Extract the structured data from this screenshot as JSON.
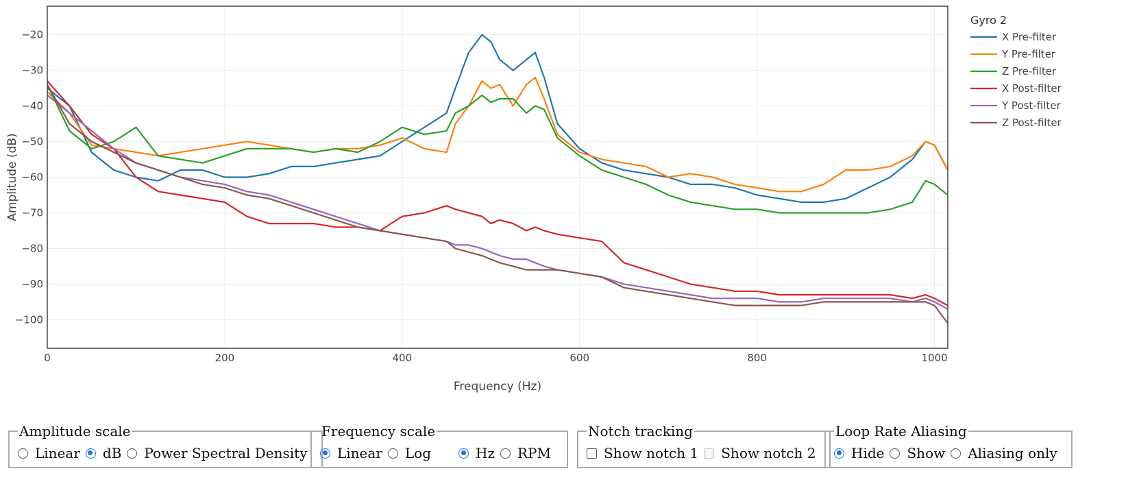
{
  "chart_data": {
    "type": "line",
    "title": "",
    "xlabel": "Frequency (Hz)",
    "ylabel": "Amplitude (dB)",
    "xlim": [
      0,
      1015
    ],
    "ylim": [
      -108,
      -12
    ],
    "x_ticks": [
      0,
      200,
      400,
      600,
      800,
      1000
    ],
    "x_tick_labels": [
      "0",
      "200",
      "400",
      "600",
      "800",
      "1000"
    ],
    "y_ticks": [
      -20,
      -30,
      -40,
      -50,
      -60,
      -70,
      -80,
      -90,
      -100
    ],
    "y_tick_labels": [
      "−20",
      "−30",
      "−40",
      "−50",
      "−60",
      "−70",
      "−80",
      "−90",
      "−100"
    ],
    "grid": true,
    "legend_title": "Gyro 2",
    "legend_position": "right",
    "x": [
      0,
      25,
      50,
      75,
      100,
      125,
      150,
      175,
      200,
      225,
      250,
      275,
      300,
      325,
      350,
      375,
      400,
      425,
      450,
      460,
      475,
      490,
      500,
      510,
      525,
      540,
      550,
      560,
      575,
      600,
      625,
      650,
      675,
      700,
      725,
      750,
      775,
      800,
      825,
      850,
      875,
      900,
      925,
      950,
      975,
      990,
      1000,
      1015
    ],
    "series": [
      {
        "name": "X Pre-filter",
        "color": "#1f77b4",
        "values": [
          -35,
          -40,
          -53,
          -58,
          -60,
          -61,
          -58,
          -58,
          -60,
          -60,
          -59,
          -57,
          -57,
          -56,
          -55,
          -54,
          -50,
          -46,
          -42,
          -35,
          -25,
          -20,
          -22,
          -27,
          -30,
          -27,
          -25,
          -32,
          -45,
          -52,
          -56,
          -58,
          -59,
          -60,
          -62,
          -62,
          -63,
          -65,
          -66,
          -67,
          -67,
          -66,
          -63,
          -60,
          -55,
          -50,
          -51,
          -58
        ]
      },
      {
        "name": "Y Pre-filter",
        "color": "#ff7f0e",
        "values": [
          -36,
          -42,
          -51,
          -52,
          -53,
          -54,
          -53,
          -52,
          -51,
          -50,
          -51,
          -52,
          -53,
          -52,
          -52,
          -51,
          -49,
          -52,
          -53,
          -45,
          -40,
          -33,
          -35,
          -34,
          -40,
          -34,
          -32,
          -38,
          -48,
          -53,
          -55,
          -56,
          -57,
          -60,
          -59,
          -60,
          -62,
          -63,
          -64,
          -64,
          -62,
          -58,
          -58,
          -57,
          -54,
          -50,
          -51,
          -58
        ]
      },
      {
        "name": "Z Pre-filter",
        "color": "#2ca02c",
        "values": [
          -34,
          -47,
          -52,
          -50,
          -46,
          -54,
          -55,
          -56,
          -54,
          -52,
          -52,
          -52,
          -53,
          -52,
          -53,
          -50,
          -46,
          -48,
          -47,
          -42,
          -40,
          -37,
          -39,
          -38,
          -38,
          -42,
          -40,
          -41,
          -49,
          -54,
          -58,
          -60,
          -62,
          -65,
          -67,
          -68,
          -69,
          -69,
          -70,
          -70,
          -70,
          -70,
          -70,
          -69,
          -67,
          -61,
          -62,
          -65
        ]
      },
      {
        "name": "X Post-filter",
        "color": "#d62728",
        "values": [
          -33,
          -40,
          -48,
          -52,
          -60,
          -64,
          -65,
          -66,
          -67,
          -71,
          -73,
          -73,
          -73,
          -74,
          -74,
          -75,
          -71,
          -70,
          -68,
          -69,
          -70,
          -71,
          -73,
          -72,
          -73,
          -75,
          -74,
          -75,
          -76,
          -77,
          -78,
          -84,
          -86,
          -88,
          -90,
          -91,
          -92,
          -92,
          -93,
          -93,
          -93,
          -93,
          -93,
          -93,
          -94,
          -93,
          -94,
          -96
        ]
      },
      {
        "name": "Y Post-filter",
        "color": "#9467bd",
        "values": [
          -37,
          -42,
          -47,
          -52,
          -56,
          -58,
          -60,
          -61,
          -62,
          -64,
          -65,
          -67,
          -69,
          -71,
          -73,
          -75,
          -76,
          -77,
          -78,
          -79,
          -79,
          -80,
          -81,
          -82,
          -83,
          -83,
          -84,
          -85,
          -86,
          -87,
          -88,
          -90,
          -91,
          -92,
          -93,
          -94,
          -94,
          -94,
          -95,
          -95,
          -94,
          -94,
          -94,
          -94,
          -95,
          -94,
          -95,
          -97
        ]
      },
      {
        "name": "Z Post-filter",
        "color": "#8c564b",
        "values": [
          -34,
          -45,
          -50,
          -53,
          -56,
          -58,
          -60,
          -62,
          -63,
          -65,
          -66,
          -68,
          -70,
          -72,
          -74,
          -75,
          -76,
          -77,
          -78,
          -80,
          -81,
          -82,
          -83,
          -84,
          -85,
          -86,
          -86,
          -86,
          -86,
          -87,
          -88,
          -91,
          -92,
          -93,
          -94,
          -95,
          -96,
          -96,
          -96,
          -96,
          -95,
          -95,
          -95,
          -95,
          -95,
          -95,
          -96,
          -101
        ]
      }
    ]
  },
  "controls": {
    "amplitude_scale": {
      "legend": "Amplitude scale",
      "options": [
        {
          "label": "Linear",
          "selected": false
        },
        {
          "label": "dB",
          "selected": true
        },
        {
          "label": "Power Spectral Density",
          "selected": false
        }
      ]
    },
    "frequency_scale": {
      "legend": "Frequency scale",
      "options": [
        {
          "label": "Linear",
          "selected": true
        },
        {
          "label": "Log",
          "selected": false
        },
        {
          "label": "Hz",
          "selected": true
        },
        {
          "label": "RPM",
          "selected": false
        }
      ]
    },
    "notch_tracking": {
      "legend": "Notch tracking",
      "options": [
        {
          "label": "Show notch 1",
          "checked": false
        },
        {
          "label": "Show notch 2",
          "checked": false,
          "disabled": true
        }
      ]
    },
    "loop_rate_aliasing": {
      "legend": "Loop Rate Aliasing",
      "options": [
        {
          "label": "Hide",
          "selected": true
        },
        {
          "label": "Show",
          "selected": false
        },
        {
          "label": "Aliasing only",
          "selected": false
        }
      ]
    }
  }
}
